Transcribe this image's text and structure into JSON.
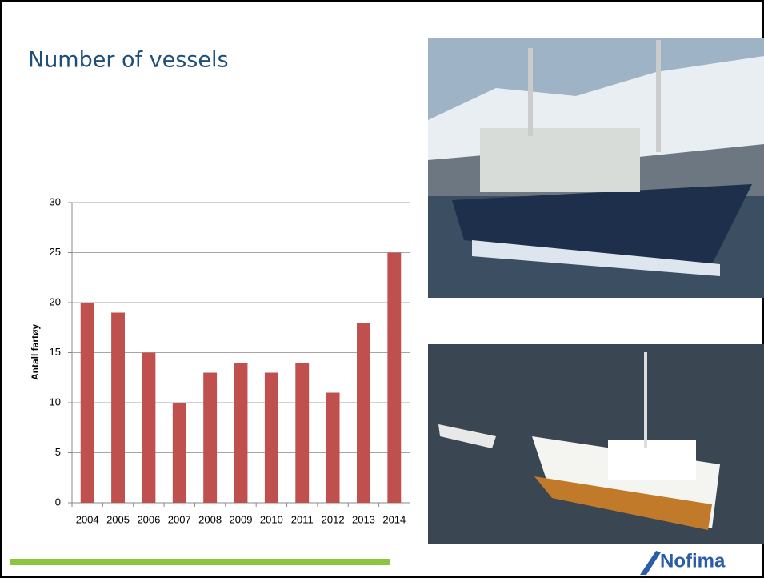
{
  "chart_data": {
    "type": "bar",
    "title": "Number of vessels",
    "y_label": "Antall fartøy",
    "categories": [
      "2004",
      "2005",
      "2006",
      "2007",
      "2008",
      "2009",
      "2010",
      "2011",
      "2012",
      "2013",
      "2014"
    ],
    "values": [
      20,
      19,
      15,
      10,
      13,
      14,
      13,
      14,
      11,
      18,
      25
    ],
    "color": "#c0504d",
    "ylim": [
      0,
      30
    ],
    "yticks": [
      0,
      5,
      10,
      15,
      20,
      25,
      30
    ],
    "grid": true
  },
  "logo": "Nofima"
}
